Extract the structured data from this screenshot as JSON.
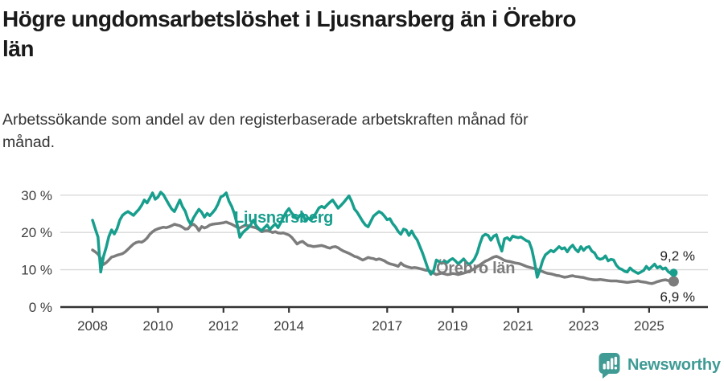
{
  "header": {
    "title_lines": [
      "Högre ungdomsarbetslöshet i Ljusnarsberg än i Örebro",
      "län"
    ],
    "subtitle_lines": [
      "Arbetssökande som andel av den registerbaserade arbetskraften månad för",
      "månad."
    ]
  },
  "footer": {
    "brand": "Newsworthy",
    "brand_color": "#3f9b94"
  },
  "chart_data": {
    "type": "line",
    "title": "Högre ungdomsarbetslöshet i Ljusnarsberg än i Örebro län",
    "subtitle": "Arbetssökande som andel av den registerbaserade arbetskraften månad för månad.",
    "xlabel": "",
    "ylabel": "",
    "ylim": [
      0,
      32
    ],
    "grid": "horizontal",
    "legend_position": "inline-labels",
    "x_unit": "monthly, Jan 2008 – Oct 2025",
    "x_start_year": 2008,
    "colors": {
      "axis": "#333333",
      "gridline": "#d9d9d9",
      "tick_text": "#3d3d3d"
    },
    "y_ticks": [
      {
        "v": 0,
        "label": "0 %"
      },
      {
        "v": 10,
        "label": "10 %"
      },
      {
        "v": 20,
        "label": "20 %"
      },
      {
        "v": 30,
        "label": "30 %"
      }
    ],
    "x_ticks": [
      {
        "v": 2008,
        "label": "2008"
      },
      {
        "v": 2010,
        "label": "2010"
      },
      {
        "v": 2012,
        "label": "2012"
      },
      {
        "v": 2014,
        "label": "2014"
      },
      {
        "v": 2017,
        "label": "2017"
      },
      {
        "v": 2019,
        "label": "2019"
      },
      {
        "v": 2021,
        "label": "2021"
      },
      {
        "v": 2023,
        "label": "2023"
      },
      {
        "v": 2025,
        "label": "2025"
      }
    ],
    "series": [
      {
        "name": "Örebro län",
        "color": "#7c7c7c",
        "end_label": "6,9 %",
        "end_value": 6.9,
        "dot_radius": 6.5,
        "values": [
          15.3,
          14.8,
          14.2,
          13.0,
          11.4,
          11.9,
          12.6,
          13.4,
          13.6,
          13.9,
          14.1,
          14.3,
          14.8,
          15.5,
          16.2,
          16.9,
          17.3,
          17.5,
          17.4,
          17.8,
          18.5,
          19.5,
          20.2,
          20.7,
          21.0,
          21.2,
          21.4,
          21.3,
          21.5,
          21.8,
          22.2,
          22.0,
          21.8,
          21.4,
          20.9,
          21.0,
          21.9,
          22.2,
          21.6,
          20.5,
          21.6,
          21.2,
          21.5,
          22.0,
          22.2,
          22.3,
          22.4,
          22.5,
          22.6,
          22.8,
          22.5,
          22.2,
          21.8,
          21.4,
          21.2,
          21.6,
          21.9,
          21.8,
          21.6,
          21.4,
          21.2,
          20.8,
          20.2,
          20.4,
          20.5,
          20.3,
          20.0,
          20.2,
          19.9,
          19.8,
          19.9,
          19.6,
          19.3,
          18.7,
          17.8,
          16.9,
          17.4,
          17.6,
          17.0,
          16.5,
          16.4,
          16.2,
          16.3,
          16.4,
          16.5,
          16.3,
          16.0,
          15.8,
          16.1,
          16.2,
          15.9,
          15.4,
          15.0,
          14.7,
          14.4,
          14.0,
          13.6,
          13.4,
          13.0,
          12.6,
          12.9,
          13.3,
          13.1,
          13.0,
          12.7,
          12.9,
          12.7,
          12.4,
          11.9,
          11.6,
          11.4,
          11.2,
          10.9,
          11.8,
          11.2,
          10.9,
          10.7,
          10.5,
          10.6,
          10.5,
          10.3,
          10.1,
          9.9,
          9.8,
          9.5,
          9.1,
          8.7,
          8.9,
          9.1,
          8.9,
          8.7,
          8.8,
          9.0,
          8.9,
          8.7,
          8.9,
          9.1,
          9.3,
          9.6,
          9.9,
          10.3,
          10.8,
          11.3,
          11.8,
          12.3,
          12.6,
          13.0,
          13.4,
          13.6,
          13.3,
          12.9,
          12.5,
          12.3,
          12.2,
          12.0,
          11.8,
          11.7,
          11.5,
          11.2,
          10.9,
          10.7,
          10.5,
          10.3,
          10.1,
          9.8,
          9.5,
          9.2,
          9.0,
          8.9,
          8.7,
          8.5,
          8.4,
          8.2,
          8.0,
          8.1,
          8.3,
          8.4,
          8.2,
          8.1,
          8.0,
          7.9,
          7.7,
          7.5,
          7.4,
          7.3,
          7.3,
          7.4,
          7.3,
          7.2,
          7.1,
          7.0,
          7.0,
          7.0,
          6.9,
          6.8,
          6.7,
          6.6,
          6.7,
          6.8,
          6.9,
          7.0,
          6.8,
          6.7,
          6.6,
          6.4,
          6.3,
          6.5,
          6.8,
          7.0,
          7.2,
          7.3,
          7.1,
          7.0,
          6.9
        ]
      },
      {
        "name": "Ljusnarsberg",
        "color": "#179e8d",
        "end_label": "9,2 %",
        "end_value": 9.2,
        "dot_radius": 5,
        "values": [
          23.3,
          21.0,
          18.8,
          9.4,
          13.5,
          16.0,
          18.9,
          20.7,
          19.6,
          21.0,
          23.3,
          24.6,
          25.2,
          25.6,
          25.1,
          24.6,
          25.4,
          26.2,
          27.3,
          28.7,
          27.9,
          29.2,
          30.6,
          28.9,
          29.5,
          30.8,
          30.1,
          28.8,
          27.5,
          26.3,
          25.6,
          27.1,
          28.7,
          26.9,
          25.7,
          23.5,
          22.2,
          23.9,
          25.1,
          26.2,
          25.4,
          24.1,
          25.1,
          24.5,
          25.3,
          26.2,
          27.6,
          29.5,
          29.9,
          30.6,
          28.4,
          27.0,
          25.0,
          22.2,
          18.7,
          19.9,
          20.6,
          21.2,
          22.1,
          23.3,
          21.8,
          21.0,
          20.5,
          21.3,
          22.0,
          20.8,
          21.6,
          22.3,
          21.3,
          22.6,
          24.1,
          25.5,
          26.4,
          25.2,
          24.4,
          23.6,
          24.6,
          25.0,
          23.2,
          23.9,
          23.3,
          24.2,
          25.3,
          26.6,
          27.0,
          26.6,
          27.4,
          28.1,
          28.7,
          27.6,
          26.5,
          27.2,
          28.0,
          28.9,
          29.8,
          28.3,
          26.3,
          25.4,
          24.2,
          23.0,
          22.0,
          21.5,
          23.0,
          24.4,
          25.0,
          25.6,
          25.2,
          24.4,
          23.4,
          23.7,
          22.4,
          21.5,
          20.3,
          19.5,
          20.9,
          20.6,
          19.2,
          20.4,
          19.0,
          18.0,
          16.2,
          14.4,
          12.3,
          10.1,
          8.8,
          9.7,
          12.6,
          12.2,
          11.7,
          12.4,
          11.9,
          12.6,
          13.0,
          12.4,
          11.6,
          12.2,
          12.9,
          12.0,
          11.4,
          12.0,
          12.9,
          14.5,
          17.0,
          19.0,
          19.5,
          19.2,
          17.9,
          19.0,
          19.4,
          17.0,
          15.0,
          18.3,
          18.6,
          17.9,
          19.0,
          18.8,
          18.6,
          18.8,
          18.3,
          17.8,
          17.5,
          15.5,
          12.0,
          8.0,
          10.0,
          12.5,
          14.0,
          14.6,
          15.2,
          14.8,
          15.5,
          16.2,
          15.6,
          15.9,
          14.8,
          15.9,
          16.6,
          15.5,
          14.8,
          16.2,
          15.2,
          16.0,
          16.2,
          15.0,
          14.5,
          13.2,
          12.8,
          13.0,
          13.7,
          12.4,
          12.8,
          12.6,
          11.2,
          10.4,
          10.1,
          9.6,
          9.4,
          10.5,
          9.8,
          9.4,
          9.0,
          9.4,
          9.8,
          10.9,
          10.1,
          10.8,
          11.5,
          10.5,
          10.9,
          10.2,
          10.5,
          9.5,
          9.0,
          9.2
        ]
      }
    ]
  }
}
